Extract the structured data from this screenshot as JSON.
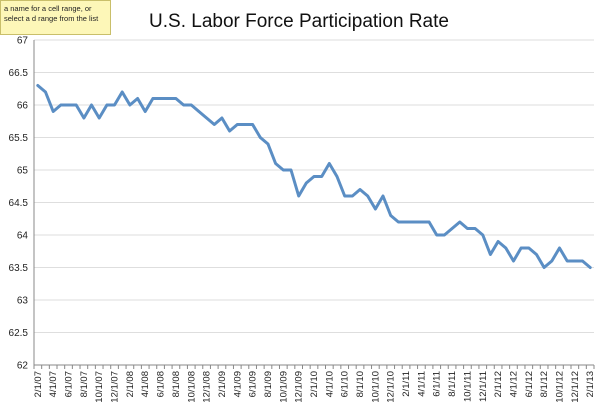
{
  "tooltip": {
    "text": "a name for a cell range, or select a d range from the list"
  },
  "chart_data": {
    "type": "line",
    "title": "U.S. Labor Force Participation Rate",
    "xlabel": "",
    "ylabel": "",
    "ylim": [
      62,
      67
    ],
    "yticks": [
      "62",
      "62.5",
      "63",
      "63.5",
      "64",
      "64.5",
      "65",
      "65.5",
      "66",
      "66.5",
      "67"
    ],
    "grid": true,
    "legend": "none",
    "line_color": "#5b8ec4",
    "x": [
      "2/1/07",
      "3/1/07",
      "4/1/07",
      "5/1/07",
      "6/1/07",
      "7/1/07",
      "8/1/07",
      "9/1/07",
      "10/1/07",
      "11/1/07",
      "12/1/07",
      "1/1/08",
      "2/1/08",
      "3/1/08",
      "4/1/08",
      "5/1/08",
      "6/1/08",
      "7/1/08",
      "8/1/08",
      "9/1/08",
      "10/1/08",
      "11/1/08",
      "12/1/08",
      "1/1/09",
      "2/1/09",
      "3/1/09",
      "4/1/09",
      "5/1/09",
      "6/1/09",
      "7/1/09",
      "8/1/09",
      "9/1/09",
      "10/1/09",
      "11/1/09",
      "12/1/09",
      "1/1/10",
      "2/1/10",
      "3/1/10",
      "4/1/10",
      "5/1/10",
      "6/1/10",
      "7/1/10",
      "8/1/10",
      "9/1/10",
      "10/1/10",
      "11/1/10",
      "12/1/10",
      "1/1/11",
      "2/1/11",
      "3/1/11",
      "4/1/11",
      "5/1/11",
      "6/1/11",
      "7/1/11",
      "8/1/11",
      "9/1/11",
      "10/1/11",
      "11/1/11",
      "12/1/11",
      "1/1/12",
      "2/1/12",
      "3/1/12",
      "4/1/12",
      "5/1/12",
      "6/1/12",
      "7/1/12",
      "8/1/12",
      "9/1/12",
      "10/1/12",
      "11/1/12",
      "12/1/12",
      "1/1/13",
      "2/1/13"
    ],
    "x_tick_labels": [
      "2/1/07",
      "4/1/07",
      "6/1/07",
      "8/1/07",
      "10/1/07",
      "12/1/07",
      "2/1/08",
      "4/1/08",
      "6/1/08",
      "8/1/08",
      "10/1/08",
      "12/1/08",
      "2/1/09",
      "4/1/09",
      "6/1/09",
      "8/1/09",
      "10/1/09",
      "12/1/09",
      "2/1/10",
      "4/1/10",
      "6/1/10",
      "8/1/10",
      "10/1/10",
      "12/1/10",
      "2/1/11",
      "4/1/11",
      "6/1/11",
      "8/1/11",
      "10/1/11",
      "12/1/11",
      "2/1/12",
      "4/1/12",
      "6/1/12",
      "8/1/12",
      "10/1/12",
      "12/1/12",
      "2/1/13"
    ],
    "series": [
      {
        "values": [
          66.3,
          66.2,
          65.9,
          66.0,
          66.0,
          66.0,
          65.8,
          66.0,
          65.8,
          66.0,
          66.0,
          66.2,
          66.0,
          66.1,
          65.9,
          66.1,
          66.1,
          66.1,
          66.1,
          66.0,
          66.0,
          65.9,
          65.8,
          65.7,
          65.8,
          65.6,
          65.7,
          65.7,
          65.7,
          65.5,
          65.4,
          65.1,
          65.0,
          65.0,
          64.6,
          64.8,
          64.9,
          64.9,
          65.1,
          64.9,
          64.6,
          64.6,
          64.7,
          64.6,
          64.4,
          64.6,
          64.3,
          64.2,
          64.2,
          64.2,
          64.2,
          64.2,
          64.0,
          64.0,
          64.1,
          64.2,
          64.1,
          64.1,
          64.0,
          63.7,
          63.9,
          63.8,
          63.6,
          63.8,
          63.8,
          63.7,
          63.5,
          63.6,
          63.8,
          63.6,
          63.6,
          63.6,
          63.5
        ]
      }
    ]
  }
}
